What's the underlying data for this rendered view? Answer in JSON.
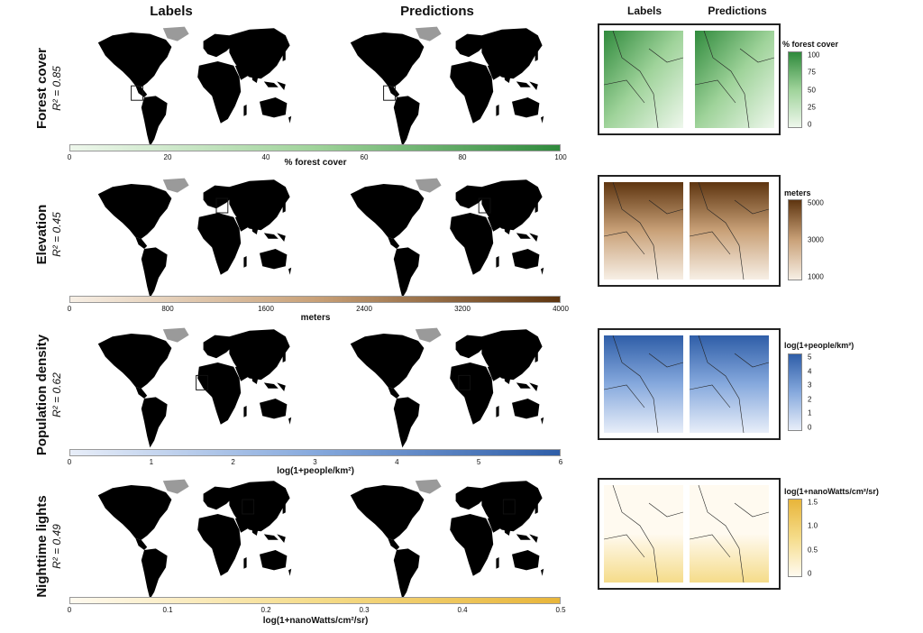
{
  "headers": {
    "labels": "Labels",
    "predictions": "Predictions"
  },
  "rows": [
    {
      "id": "forest",
      "variable": "Forest cover",
      "r2": "R² = 0.85",
      "colors": {
        "low": "#eef7ec",
        "mid": "#9fd39a",
        "high": "#2f8a3c"
      },
      "colorbar": {
        "label": "% forest cover",
        "ticks": [
          "0",
          "20",
          "40",
          "60",
          "80",
          "100"
        ]
      },
      "legend": {
        "title": "% forest cover",
        "ticks": [
          "100",
          "75",
          "50",
          "25",
          "0"
        ]
      }
    },
    {
      "id": "elevation",
      "variable": "Elevation",
      "r2": "R² = 0.45",
      "colors": {
        "low": "#f7efe5",
        "mid": "#c9a178",
        "high": "#5e3510"
      },
      "colorbar": {
        "label": "meters",
        "ticks": [
          "0",
          "800",
          "1600",
          "2400",
          "3200",
          "4000"
        ]
      },
      "legend": {
        "title": "meters",
        "ticks": [
          "5000",
          "3000",
          "1000"
        ]
      }
    },
    {
      "id": "population",
      "variable": "Population density",
      "r2": "R² = 0.62",
      "colors": {
        "low": "#e8eef9",
        "mid": "#86a9dd",
        "high": "#2f5ea8"
      },
      "colorbar": {
        "label": "log(1+people/km²)",
        "ticks": [
          "0",
          "1",
          "2",
          "3",
          "4",
          "5",
          "6"
        ]
      },
      "legend": {
        "title": "log(1+people/km²)",
        "ticks": [
          "5",
          "4",
          "3",
          "2",
          "1",
          "0"
        ]
      }
    },
    {
      "id": "lights",
      "variable": "Nighttime lights",
      "r2": "R² = 0.49",
      "colors": {
        "low": "#fffaf0",
        "mid": "#f5dc8a",
        "high": "#e8b53a"
      },
      "colorbar": {
        "label": "log(1+nanoWatts/cm²/sr)",
        "ticks": [
          "0",
          "0.1",
          "0.2",
          "0.3",
          "0.4",
          "0.5"
        ]
      },
      "legend": {
        "title": "log(1+nanoWatts/cm²/sr)",
        "ticks": [
          "1.5",
          "1.0",
          "0.5",
          "0"
        ]
      }
    }
  ]
}
